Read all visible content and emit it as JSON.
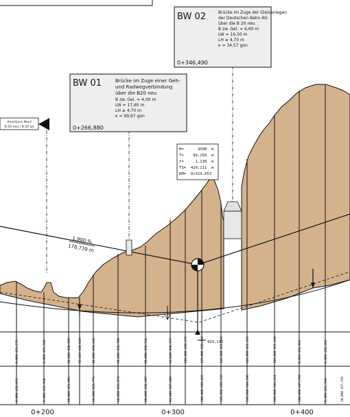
{
  "bw02": {
    "id": "BW 02",
    "lines": [
      "Brücke im Zuge der Gleisanlagen",
      "der Deutschen Bahn AG",
      "über die B 20 neu",
      "B zw. Gel. = 6,60 m",
      "LW = 16,50 m",
      "LH ≥ 4,70 m",
      "κ = 34,57 gon"
    ],
    "station": "0+346,490"
  },
  "bw01": {
    "id": "BW 01",
    "lines": [
      "Brücke im Zuge einer Geh-",
      "und Radwegverbindung",
      "über die B20 neu",
      "B zw. Gel. = 4,00 m",
      "LW = 17,65 m",
      "LH ≥ 4,70 m",
      "κ = 99,97 gon"
    ],
    "station": "0+266,880"
  },
  "anschluss": {
    "line1": "Anschluss Nord",
    "line2": "B 20 neu / B 20 alt"
  },
  "curve": {
    "lines": [
      "H=      3500  m",
      "T=    89,250  m",
      "f=     1,138  m",
      "TS=  429,111  m",
      "KM=  0+319,653"
    ]
  },
  "grade": {
    "percent": "1,900 %",
    "length": "178,739 m"
  },
  "ts_label": "429,111",
  "row1_values": [
    "0,000 431,573",
    "0,000 431,320",
    "20,000 430,999",
    "32,423 430,819",
    "40,000 430,430",
    "60,000 430,390",
    "80,000 430,216",
    "94,060 430,175",
    "100,000 430,175",
    "120,000 430,149",
    "140,000 431,146",
    "160,000 431,162",
    "180,000 431,694",
    "0,963 431,963",
    "0,000 432,322"
  ],
  "row2_values": [
    "0,000 432,813",
    "0,000 431,938",
    "20,000 431,995",
    "40,000 433,776",
    "60,000 435,274",
    "80,000 436,607",
    "94,000 437,402",
    "100,000 439,463",
    "120,000 439,133",
    "140,000 440,396",
    "160,000 444,254",
    "180,000 447,789",
    "0,000 451,569",
    "20,000 437,556"
  ],
  "axis": {
    "labels": [
      "0+200",
      "0+300",
      "0+400"
    ]
  },
  "colors": {
    "terrain": "#d4b28c",
    "box": "#eeeeee",
    "line": "#111111"
  }
}
